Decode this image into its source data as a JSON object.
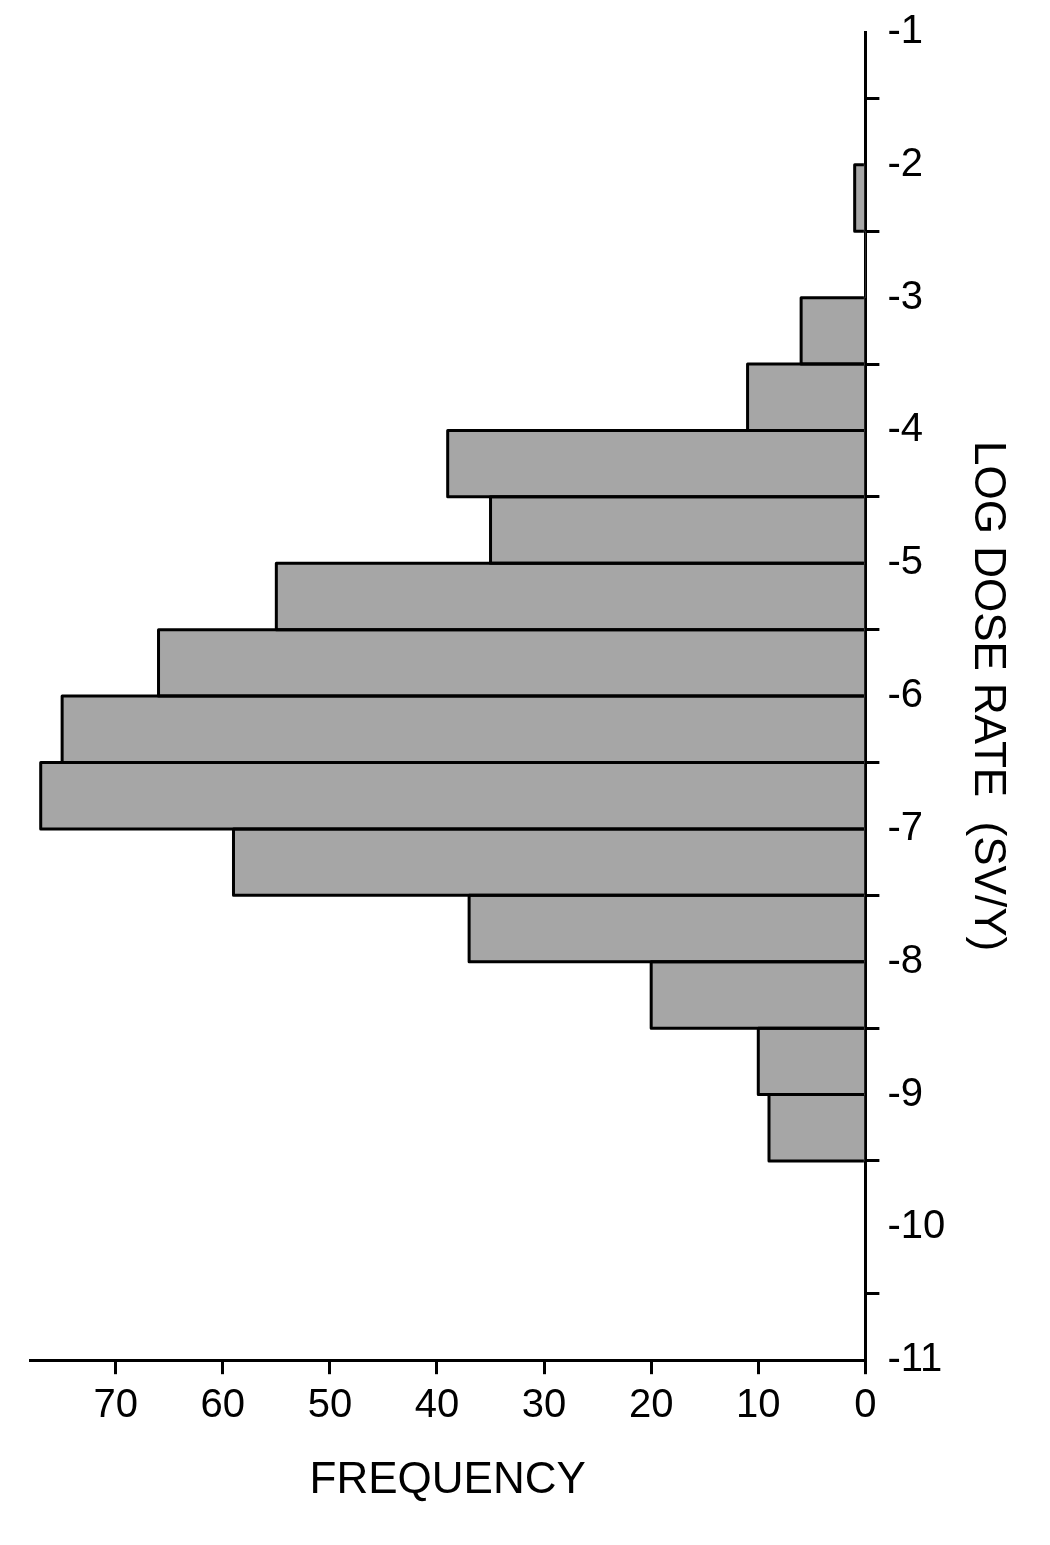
{
  "chart_data": {
    "type": "histogram",
    "orientation": "horizontal",
    "xlabel": "FREQUENCY",
    "ylabel": "LOG DOSE RATE  (SV/Y)",
    "bins": [
      -9.5,
      -9,
      -8.5,
      -8,
      -7.5,
      -7,
      -6.5,
      -6,
      -5.5,
      -5,
      -4.5,
      -4,
      -3.5,
      -3,
      -2.5,
      -2
    ],
    "values": [
      9,
      10,
      20,
      37,
      59,
      77,
      75,
      66,
      55,
      35,
      39,
      11,
      6,
      0,
      1
    ],
    "color": "#a6a6a6",
    "xlim": [
      78,
      0
    ],
    "xticks": [
      0,
      10,
      20,
      30,
      40,
      50,
      60,
      70
    ],
    "ylim": [
      -11,
      -1
    ],
    "yticks": [
      -11,
      -10,
      -9,
      -8,
      -7,
      -6,
      -5,
      -4,
      -3,
      -2,
      -1
    ],
    "grid": false,
    "legend": false
  }
}
